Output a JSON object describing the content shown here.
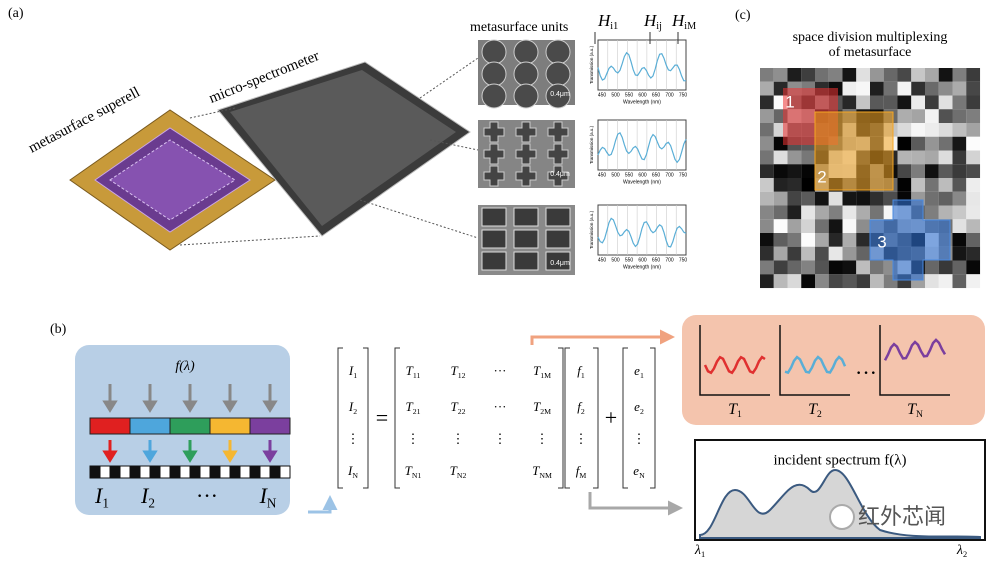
{
  "panel_a": {
    "label": "(a)",
    "superell_label": "metasurface superell",
    "spectrometer_label": "micro-spectrometer",
    "units_label": "metasurface units",
    "h_labels": [
      {
        "base": "H",
        "sub": "i1"
      },
      {
        "base": "H",
        "sub": "ij"
      },
      {
        "base": "H",
        "sub": "iM"
      }
    ],
    "scale_bars": [
      "0.4μm",
      "0.4μm",
      "0.4μm"
    ],
    "plot_x_label": "Wavelength (nm)",
    "plot_y_label": "Transmission (a.u.)",
    "plot_x_ticks": [
      "450",
      "500",
      "550",
      "600",
      "650",
      "700",
      "750"
    ]
  },
  "panel_c": {
    "label": "(c)",
    "title_lines": [
      "space division multiplexing",
      "of metasurface"
    ],
    "regions": [
      "1",
      "2",
      "3"
    ]
  },
  "panel_b": {
    "label": "(b)",
    "input": {
      "function": "f(λ)",
      "detectors": [
        {
          "base": "I",
          "sub": "1"
        },
        {
          "base": "I",
          "sub": "2"
        },
        "···",
        {
          "base": "I",
          "sub": "N"
        }
      ]
    },
    "equation": {
      "lhs": [
        {
          "base": "I",
          "sub": "1"
        },
        {
          "base": "I",
          "sub": "2"
        },
        "⋮",
        {
          "base": "I",
          "sub": "N"
        }
      ],
      "equals": "=",
      "matrix": [
        [
          {
            "base": "T",
            "sub": "11"
          },
          {
            "base": "T",
            "sub": "12"
          },
          "···",
          {
            "base": "T",
            "sub": "1M"
          }
        ],
        [
          {
            "base": "T",
            "sub": "21"
          },
          {
            "base": "T",
            "sub": "22"
          },
          "···",
          {
            "base": "T",
            "sub": "2M"
          }
        ],
        [
          "⋮",
          "⋮",
          "⋮",
          "⋮"
        ],
        [
          {
            "base": "T",
            "sub": "N1"
          },
          {
            "base": "T",
            "sub": "N2"
          },
          null,
          {
            "base": "T",
            "sub": "NM"
          }
        ]
      ],
      "f": [
        {
          "base": "f",
          "sub": "1"
        },
        {
          "base": "f",
          "sub": "2"
        },
        "⋮",
        {
          "base": "f",
          "sub": "M"
        }
      ],
      "plus": "+",
      "e": [
        {
          "base": "e",
          "sub": "1"
        },
        {
          "base": "e",
          "sub": "2"
        },
        "⋮",
        {
          "base": "e",
          "sub": "N"
        }
      ]
    },
    "transmissions": [
      {
        "base": "T",
        "sub": "1"
      },
      {
        "base": "T",
        "sub": "2"
      },
      {
        "base": "T",
        "sub": "N"
      }
    ],
    "transmission_ellipsis": "···",
    "spectrum_title": "incident spectrum f(λ)",
    "spectrum_axis": [
      {
        "base": "λ",
        "sub": "1"
      },
      {
        "base": "λ",
        "sub": "2"
      }
    ]
  },
  "watermark": "红外芯闻"
}
